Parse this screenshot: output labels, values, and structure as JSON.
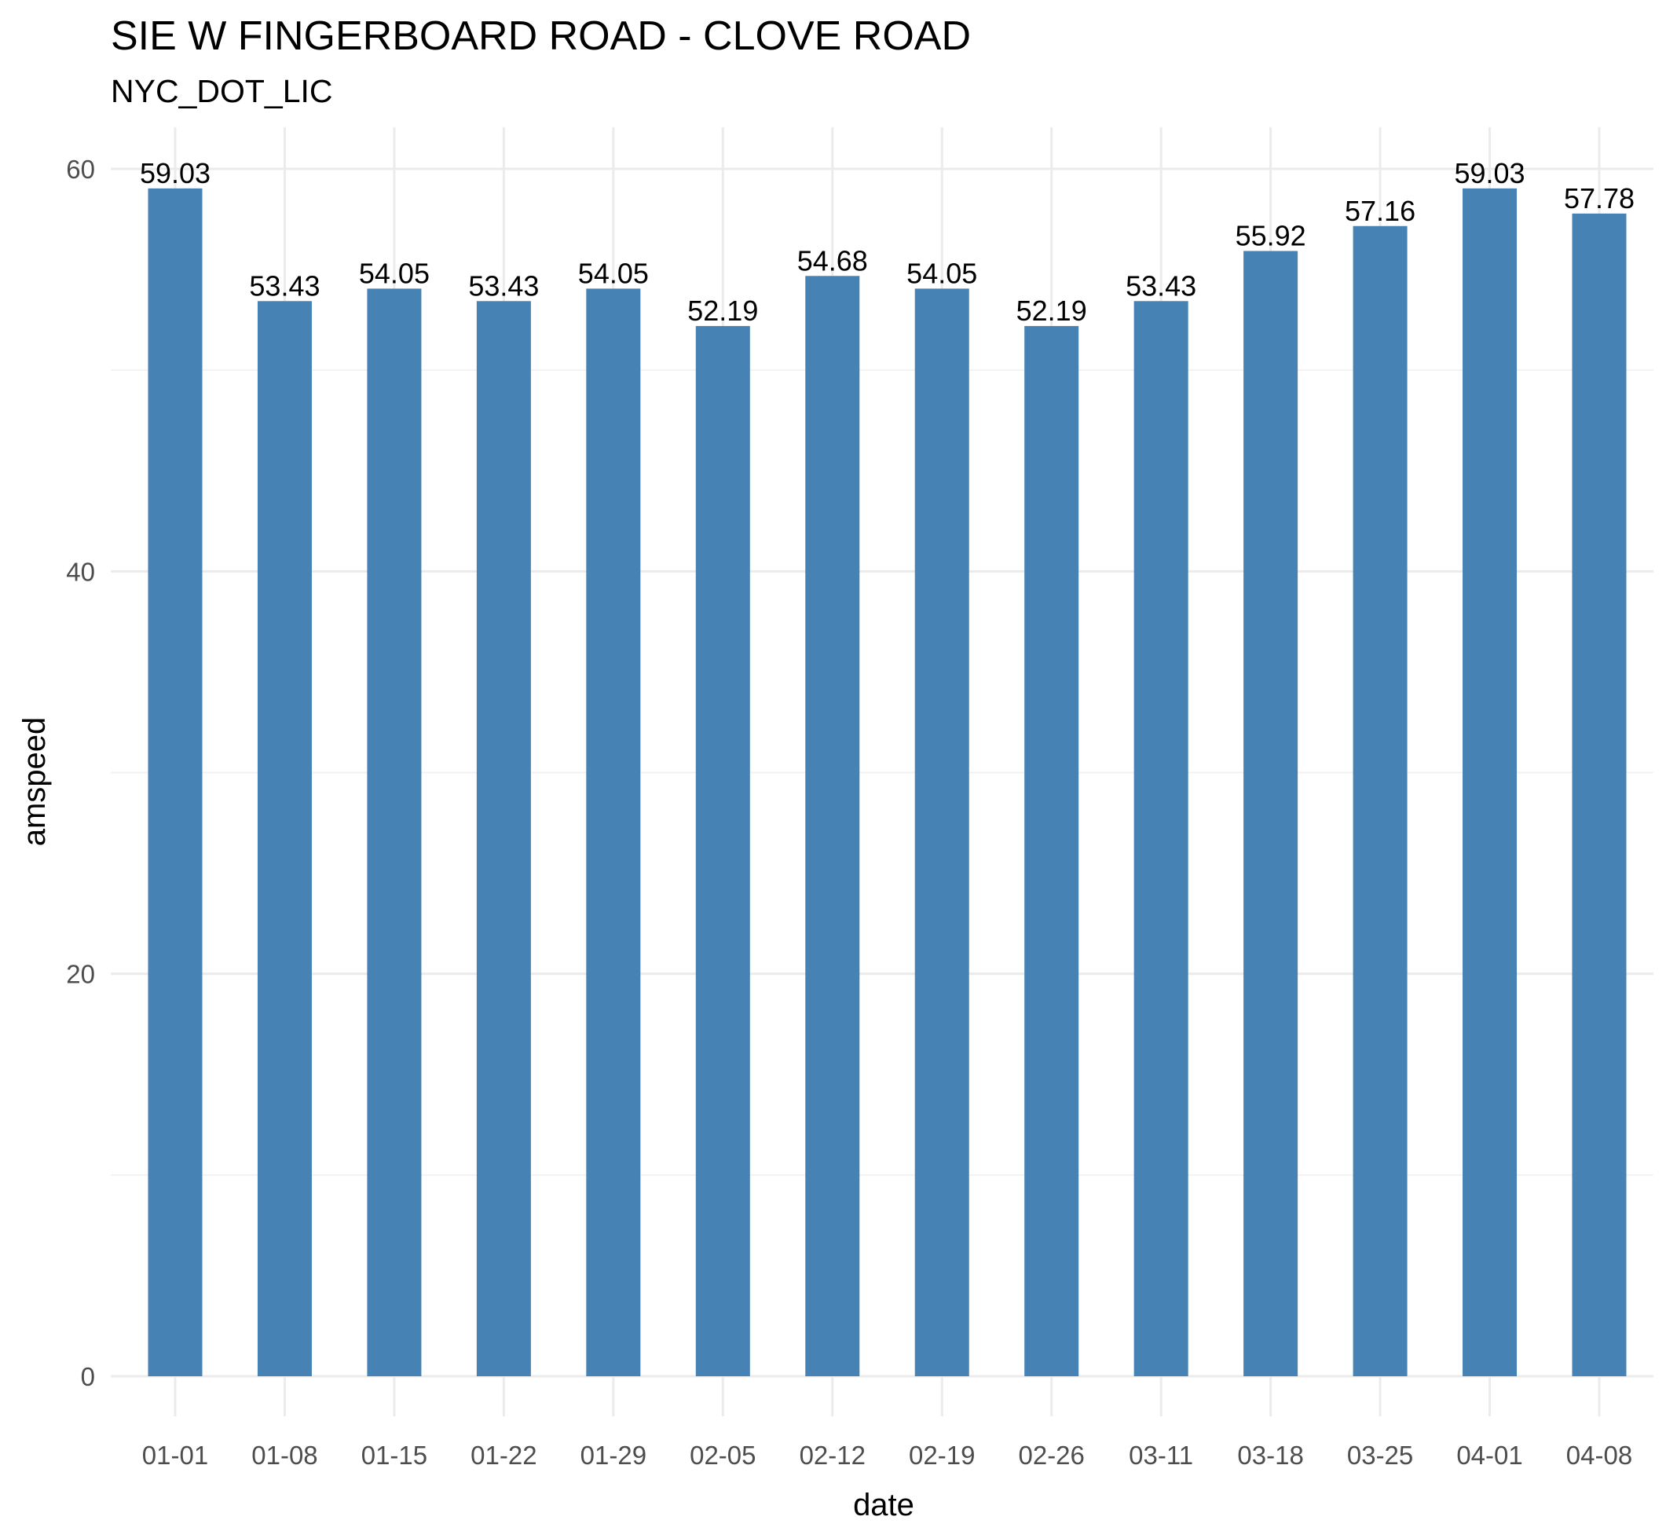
{
  "chart_data": {
    "type": "bar",
    "title": "SIE W FINGERBOARD ROAD - CLOVE ROAD",
    "subtitle": "NYC_DOT_LIC",
    "xlabel": "date",
    "ylabel": "amspeed",
    "categories": [
      "01-01",
      "01-08",
      "01-15",
      "01-22",
      "01-29",
      "02-05",
      "02-12",
      "02-19",
      "02-26",
      "03-11",
      "03-18",
      "03-25",
      "04-01",
      "04-08"
    ],
    "values": [
      59.03,
      53.43,
      54.05,
      53.43,
      54.05,
      52.19,
      54.68,
      54.05,
      52.19,
      53.43,
      55.92,
      57.16,
      59.03,
      57.78
    ],
    "data_labels": [
      "59.03",
      "53.43",
      "54.05",
      "53.43",
      "54.05",
      "52.19",
      "54.68",
      "54.05",
      "52.19",
      "53.43",
      "55.92",
      "57.16",
      "59.03",
      "57.78"
    ],
    "yticks": [
      0,
      20,
      40,
      60
    ],
    "ylim": [
      0,
      62
    ],
    "grid": true,
    "legend": "none",
    "bar_color": "#4682B4"
  }
}
